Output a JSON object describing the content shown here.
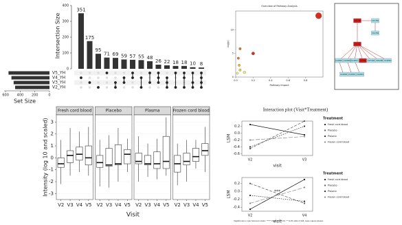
{
  "chart_data": [
    {
      "type": "upset",
      "y_label": "Intersection Size",
      "values": [
        351,
        175,
        95,
        71,
        69,
        59,
        57,
        55,
        48,
        26,
        22,
        18,
        18,
        10,
        8
      ],
      "ylim": [
        0,
        400
      ],
      "yticks": [
        0,
        100,
        200,
        300,
        400
      ],
      "color": "#333333",
      "memberships": [
        [
          1
        ],
        [
          2
        ],
        [
          3
        ],
        [
          0
        ],
        [
          2,
          3
        ],
        [
          1,
          2
        ],
        [
          0,
          1
        ],
        [
          1,
          3
        ],
        [
          0,
          2
        ],
        [
          0,
          1,
          2
        ],
        [
          1,
          2,
          3
        ],
        [
          0,
          3
        ],
        [
          0,
          1,
          3
        ],
        [
          0,
          2,
          3
        ],
        [
          0,
          1,
          2,
          3
        ]
      ],
      "sets": [
        "V5_YH",
        "V4_YH",
        "V3_YH",
        "V2_YH"
      ],
      "set_sizes": [
        560,
        520,
        490,
        470
      ],
      "set_label": "Set Size",
      "set_lim": [
        0,
        620
      ],
      "set_ticks": [
        600,
        400,
        200,
        0
      ]
    },
    {
      "type": "scatter",
      "title": "Overview of Pathway Analysis",
      "x_label": "Pathway Impact",
      "y_label": "-log(p)",
      "x": [
        0.95,
        0.2,
        0.05,
        0.03,
        0.04,
        0.05,
        0.1,
        0.02
      ],
      "values": [
        13,
        5,
        6,
        4,
        2.5,
        1.5,
        1,
        0.8
      ],
      "colors": [
        "#d62c1e",
        "#d62c1e",
        "#e8701a",
        "#e8701a",
        "#e6c21e",
        "#e6d81e",
        "#f0e87a",
        "#f4ef9e"
      ],
      "xlim": [
        0,
        1
      ],
      "ylim": [
        0,
        14
      ],
      "xticks": [
        {
          "value": 0,
          "label": "0.0"
        },
        0.2,
        0.4,
        0.6,
        0.8
      ],
      "yticks": [
        0,
        5,
        10
      ]
    },
    {
      "type": "box",
      "y_label": "Intensity (log 10 and scaled)",
      "x_label": "Visit",
      "categories": [
        "V2",
        "V3",
        "V4",
        "V5"
      ],
      "ylim": [
        -3.5,
        3.6
      ],
      "yticks": [
        -3,
        -2,
        -1,
        0,
        1,
        2,
        3
      ],
      "series": [
        {
          "name": "Fresh cord blood",
          "values": [
            [
              -2.2,
              -0.8,
              -0.5,
              0.0,
              1.5
            ],
            [
              -1.5,
              -0.4,
              0.2,
              0.6,
              2.5
            ],
            [
              -1.2,
              -0.2,
              0.3,
              0.9,
              2.2
            ],
            [
              -1.5,
              -0.6,
              0.0,
              1.0,
              2.6
            ]
          ]
        },
        {
          "name": "Placebo",
          "values": [
            [
              -2.4,
              -0.8,
              -0.4,
              0.2,
              1.5
            ],
            [
              -2.5,
              -0.7,
              -0.6,
              0.8,
              1.9
            ],
            [
              -2.0,
              -0.6,
              -0.5,
              1.1,
              2.5
            ],
            [
              -1.2,
              -0.5,
              0.3,
              0.7,
              1.6
            ]
          ]
        },
        {
          "name": "Plasma",
          "values": [
            [
              -2.0,
              -0.5,
              -0.3,
              0.4,
              1.8
            ],
            [
              -1.6,
              -0.6,
              -0.5,
              0.2,
              1.2
            ],
            [
              -1.8,
              -0.9,
              -0.5,
              0.5,
              1.6
            ],
            [
              -1.5,
              -0.9,
              -0.3,
              1.8,
              3.4
            ]
          ]
        },
        {
          "name": "Frozen cord blood",
          "values": [
            [
              -2.3,
              -1.2,
              -0.5,
              0.2,
              1.2
            ],
            [
              -2.0,
              -0.6,
              -0.3,
              0.4,
              1.5
            ],
            [
              -0.9,
              -0.3,
              0.1,
              0.8,
              1.5
            ],
            [
              -1.2,
              0.2,
              0.6,
              1.2,
              2.6
            ]
          ]
        }
      ]
    },
    {
      "type": "line",
      "title": "Interaction plot (Visit*Treatment)",
      "x_label": "visit",
      "y_label": "LSM",
      "legend_title": "Treatment",
      "categories": [
        "V2",
        "V3"
      ],
      "ylim": [
        -0.65,
        0.35
      ],
      "yticks": [
        -0.6,
        -0.4,
        -0.2,
        {
          "value": 0,
          "label": "0.0"
        },
        0.2
      ],
      "series": [
        {
          "name": "Fresh cord blood",
          "color": "#111111",
          "values": [
            0.25,
            -0.05
          ]
        },
        {
          "name": "Placebo",
          "color": "#555555",
          "values": [
            -0.45,
            0.35
          ]
        },
        {
          "name": "Plasma",
          "color": "#222222",
          "values": [
            -0.4,
            0.2
          ]
        },
        {
          "name": "Frozen cord blood",
          "color": "#888888",
          "values": [
            -0.2,
            -0.1
          ]
        }
      ]
    },
    {
      "type": "line",
      "x_label": "visit",
      "y_label": "LSM",
      "legend_title": "Treatment",
      "categories": [
        "V2",
        "V4"
      ],
      "ylim": [
        -0.5,
        0.35
      ],
      "yticks": [
        -0.4,
        -0.2,
        {
          "value": 0,
          "label": "0.0"
        },
        0.2
      ],
      "annotations": [
        "***"
      ],
      "note": "Significance code between visits: '***' 0.001 '**' 0.01 '*' 0.05 abbr.:LSM, least square means",
      "series": [
        {
          "name": "Fresh cord blood",
          "color": "#111111",
          "values": [
            -0.45,
            0.3
          ]
        },
        {
          "name": "Placebo",
          "color": "#555555",
          "values": [
            0.2,
            -0.3
          ]
        },
        {
          "name": "Plasma",
          "color": "#222222",
          "values": [
            -0.1,
            -0.25
          ]
        },
        {
          "name": "Frozen cord blood",
          "color": "#888888",
          "values": [
            -0.3,
            0.1
          ]
        }
      ]
    }
  ],
  "diagram": {
    "nodes": [
      {
        "label": "C00186"
      },
      {
        "label": "C15782"
      },
      {
        "label": "C14769"
      },
      {
        "label": "C05302"
      },
      {
        "label": "C14825"
      },
      {
        "label": "C14826"
      },
      {
        "label": "C14827"
      },
      {
        "label": "C14828"
      },
      {
        "label": "C07328"
      },
      {
        "label": "C05298"
      },
      {
        "label": "C14830"
      },
      {
        "label": "C14829"
      },
      {
        "label": "C14832"
      },
      {
        "label": "C14833"
      }
    ]
  }
}
